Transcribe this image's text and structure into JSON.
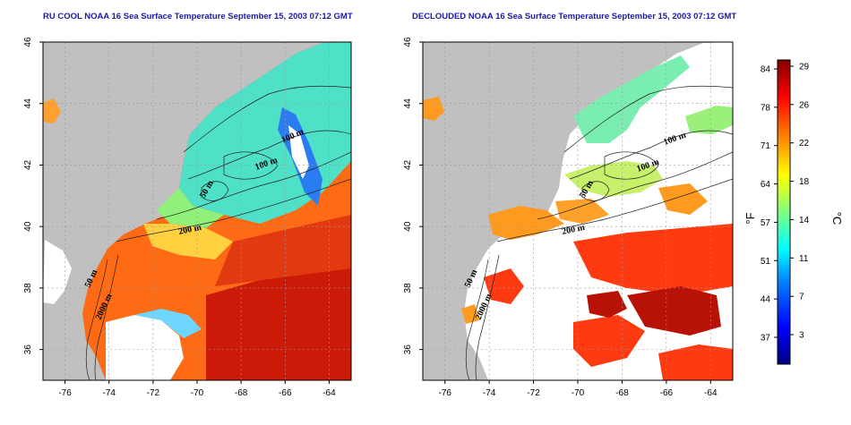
{
  "panels": [
    {
      "id": "left",
      "title": "RU COOL NOAA 16 Sea Surface Temperature September 15, 2003 07:12 GMT"
    },
    {
      "id": "right",
      "title": "DECLOUDED NOAA 16 Sea Surface Temperature September 15, 2003 07:12 GMT"
    }
  ],
  "axes": {
    "lon_ticks": [
      -76,
      -74,
      -72,
      -70,
      -68,
      -66,
      -64
    ],
    "lat_ticks": [
      36,
      38,
      40,
      42,
      44,
      46
    ],
    "lon_range": [
      -77,
      -63
    ],
    "lat_range": [
      35,
      46
    ]
  },
  "contour_labels": [
    "100 m",
    "50 m",
    "100 m",
    "200 m",
    "50 m",
    "2000 m"
  ],
  "colorbar": {
    "f_label": "°F",
    "c_label": "°C",
    "f_ticks": [
      "84",
      "78",
      "71",
      "64",
      "57",
      "51",
      "44",
      "37"
    ],
    "c_ticks": [
      "29",
      "26",
      "22",
      "18",
      "14",
      "11",
      "7",
      "3"
    ],
    "range_c": [
      0,
      30
    ],
    "colors": [
      "#00007f",
      "#0000ff",
      "#0080ff",
      "#00ffff",
      "#80ff80",
      "#ffff00",
      "#ff8000",
      "#ff0000",
      "#7f0000"
    ]
  },
  "colors": {
    "land": "#c0c0c0",
    "cloud": "#ffffff",
    "title": "#1a1aa8",
    "contour": "#222222"
  }
}
